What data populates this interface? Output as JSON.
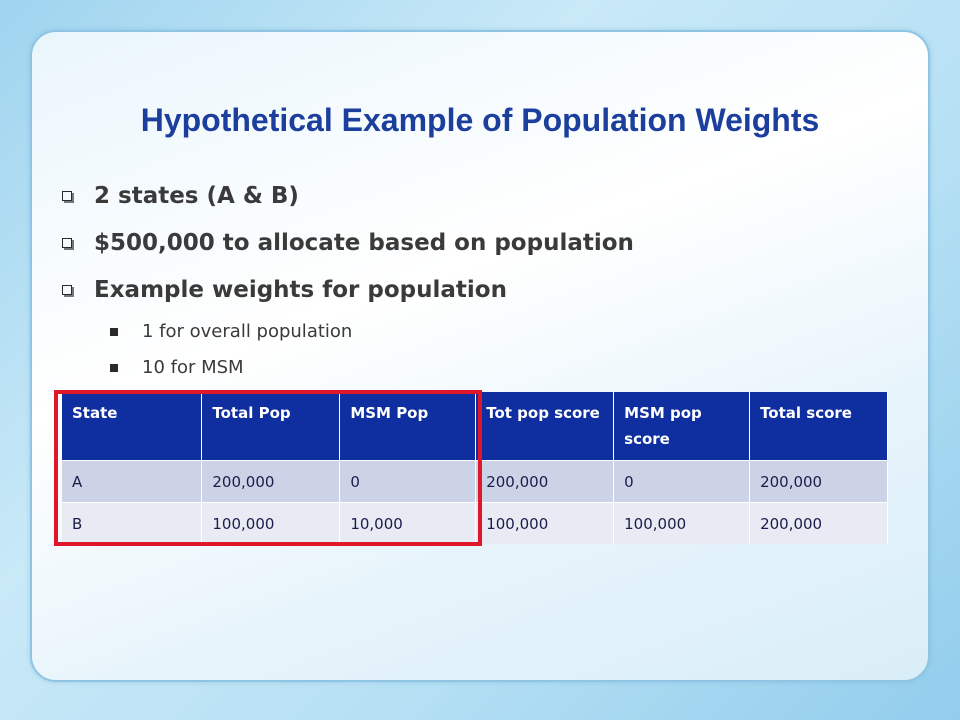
{
  "title": "Hypothetical Example of Population Weights",
  "bullets": [
    "2 states (A & B)",
    "$500,000 to allocate based on population",
    "Example weights for population"
  ],
  "sub_bullets": [
    "1 for overall population",
    "10 for MSM"
  ],
  "table": {
    "headers": [
      "State",
      "Total Pop",
      "MSM Pop",
      "Tot pop score",
      "MSM pop score",
      "Total score"
    ],
    "rows": [
      [
        "A",
        "200,000",
        "0",
        "200,000",
        "0",
        "200,000"
      ],
      [
        "B",
        "100,000",
        "10,000",
        "100,000",
        "100,000",
        "200,000"
      ]
    ]
  },
  "colors": {
    "title": "#1c3f9e",
    "header_bg": "#0f2e9f",
    "row1_bg": "#cdd3e6",
    "row2_bg": "#e8ebf3",
    "highlight": "#e0172b"
  }
}
